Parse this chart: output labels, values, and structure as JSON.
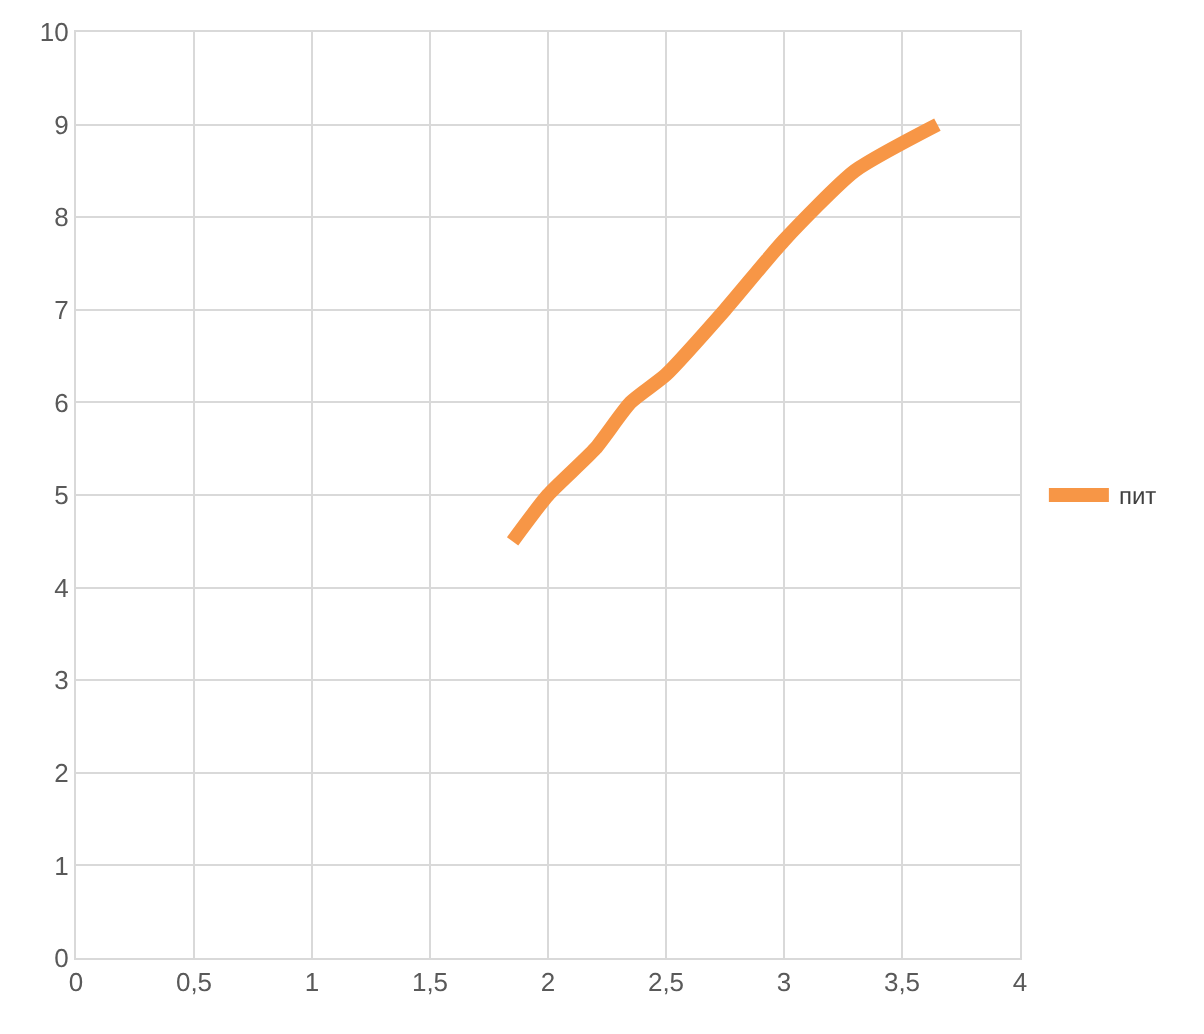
{
  "chart_data": {
    "type": "line",
    "x": [
      1.85,
      2,
      2.2,
      2.35,
      2.5,
      2.75,
      3,
      3.3,
      3.65
    ],
    "series": [
      {
        "name": "пит",
        "color": "#f79646",
        "values": [
          4.5,
          5,
          5.5,
          6,
          6.3,
          7,
          7.75,
          8.5,
          9
        ]
      }
    ],
    "xlim": [
      0,
      4
    ],
    "xticks": [
      0,
      {
        "value": 0.5,
        "label": "0,5"
      },
      1,
      {
        "value": 1.5,
        "label": "1,5"
      },
      2,
      {
        "value": 2.5,
        "label": "2,5"
      },
      3,
      {
        "value": 3.5,
        "label": "3,5"
      },
      4
    ],
    "ylim": [
      0,
      10
    ],
    "yticks": [
      0,
      1,
      2,
      3,
      4,
      5,
      6,
      7,
      8,
      9,
      10
    ],
    "grid": true,
    "legend": "right",
    "marker": "none",
    "line_style": "solid"
  }
}
